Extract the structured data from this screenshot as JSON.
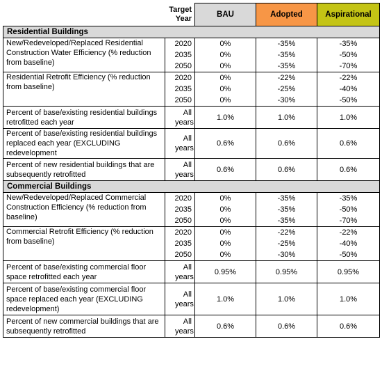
{
  "header": {
    "target_year": "Target Year",
    "scenarios": [
      "BAU",
      "Adopted",
      "Aspirational"
    ]
  },
  "sections": [
    {
      "title": "Residential Buildings",
      "rows": [
        {
          "label": "New/Redeveloped/Replaced Residential Construction Water Efficiency (% reduction from baseline)",
          "years": [
            {
              "year": "2020",
              "bau": "0%",
              "adopted": "-35%",
              "aspirational": "-35%"
            },
            {
              "year": "2035",
              "bau": "0%",
              "adopted": "-35%",
              "aspirational": "-50%"
            },
            {
              "year": "2050",
              "bau": "0%",
              "adopted": "-35%",
              "aspirational": "-70%"
            }
          ]
        },
        {
          "label": "Residential Retrofit Efficiency (% reduction from baseline)",
          "years": [
            {
              "year": "2020",
              "bau": "0%",
              "adopted": "-22%",
              "aspirational": "-22%"
            },
            {
              "year": "2035",
              "bau": "0%",
              "adopted": "-25%",
              "aspirational": "-40%"
            },
            {
              "year": "2050",
              "bau": "0%",
              "adopted": "-30%",
              "aspirational": "-50%"
            }
          ]
        },
        {
          "label": "Percent of base/existing residential buildings retrofitted each year",
          "years": [
            {
              "year": "All years",
              "bau": "1.0%",
              "adopted": "1.0%",
              "aspirational": "1.0%"
            }
          ]
        },
        {
          "label": "Percent of base/existing residential buildings replaced each year (EXCLUDING redevelopment",
          "years": [
            {
              "year": "All years",
              "bau": "0.6%",
              "adopted": "0.6%",
              "aspirational": "0.6%"
            }
          ]
        },
        {
          "label": "Percent of new residential buildings that are subsequently retrofitted",
          "years": [
            {
              "year": "All years",
              "bau": "0.6%",
              "adopted": "0.6%",
              "aspirational": "0.6%"
            }
          ]
        }
      ]
    },
    {
      "title": "Commercial Buildings",
      "rows": [
        {
          "label": "New/Redeveloped/Replaced Commercial Construction Efficiency (% reduction from baseline)",
          "years": [
            {
              "year": "2020",
              "bau": "0%",
              "adopted": "-35%",
              "aspirational": "-35%"
            },
            {
              "year": "2035",
              "bau": "0%",
              "adopted": "-35%",
              "aspirational": "-50%"
            },
            {
              "year": "2050",
              "bau": "0%",
              "adopted": "-35%",
              "aspirational": "-70%"
            }
          ]
        },
        {
          "label": "Commercial Retrofit Efficiency (% reduction from baseline)",
          "years": [
            {
              "year": "2020",
              "bau": "0%",
              "adopted": "-22%",
              "aspirational": "-22%"
            },
            {
              "year": "2035",
              "bau": "0%",
              "adopted": "-25%",
              "aspirational": "-40%"
            },
            {
              "year": "2050",
              "bau": "0%",
              "adopted": "-30%",
              "aspirational": "-50%"
            }
          ]
        },
        {
          "label": "Percent of base/existing commercial floor space retrofitted each year",
          "years": [
            {
              "year": "All years",
              "bau": "0.95%",
              "adopted": "0.95%",
              "aspirational": "0.95%"
            }
          ]
        },
        {
          "label": "Percent of base/existing commercial floor space replaced each year (EXCLUDING redevelopment)",
          "years": [
            {
              "year": "All years",
              "bau": "1.0%",
              "adopted": "1.0%",
              "aspirational": "1.0%"
            }
          ]
        },
        {
          "label": "Percent of new commercial buildings that are subsequently retrofitted",
          "years": [
            {
              "year": "All years",
              "bau": "0.6%",
              "adopted": "0.6%",
              "aspirational": "0.6%"
            }
          ]
        }
      ]
    }
  ]
}
